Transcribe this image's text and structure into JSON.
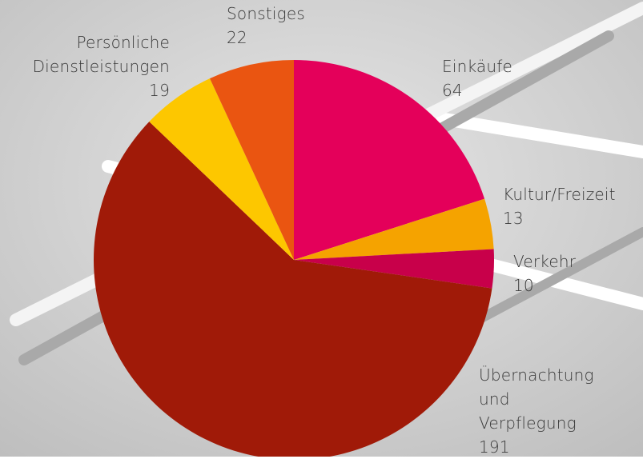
{
  "chart_data": {
    "type": "pie",
    "categories": [
      "Einkäufe",
      "Kultur/Freizeit",
      "Verkehr",
      "Übernachtung und Verpflegung",
      "Persönliche Dienstleistungen",
      "Sonstiges"
    ],
    "values": [
      64,
      13,
      10,
      191,
      19,
      22
    ],
    "colors": [
      "#e4005a",
      "#f5a300",
      "#c8004a",
      "#a01a08",
      "#fdc700",
      "#ea5511"
    ]
  }
}
